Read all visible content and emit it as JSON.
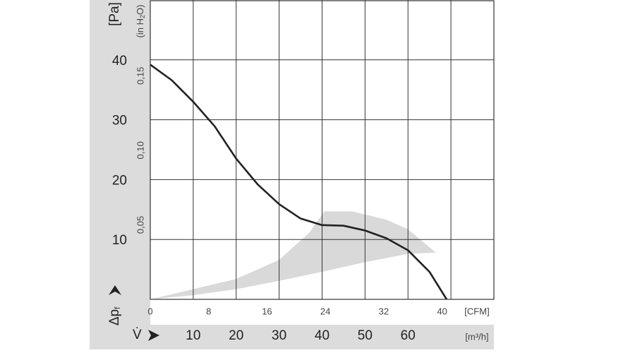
{
  "chart_data": {
    "type": "line",
    "x_label": "[m³/h]",
    "x2_label": "[CFM]",
    "x_symbol": "V̇",
    "y_label": "[Pa]",
    "y_symbol": {
      "main": "Δp",
      "subscript": "f"
    },
    "y2_label": {
      "before": "(in H",
      "subscript": "2",
      "after": "O)"
    },
    "xlim": [
      0,
      80
    ],
    "xticks": [
      10,
      20,
      30,
      40,
      50,
      60
    ],
    "x_gridlines": [
      10,
      20,
      30,
      40,
      50,
      60,
      70
    ],
    "x2lim": [
      0,
      47.1
    ],
    "x2ticks": [
      0,
      8,
      16,
      24,
      32,
      40
    ],
    "ylim": [
      0,
      50
    ],
    "yticks": [
      10,
      20,
      30,
      40
    ],
    "y2lim": [
      0,
      0.2008
    ],
    "y2ticks": [
      {
        "value": 0.05,
        "label": "0,05"
      },
      {
        "value": 0.1,
        "label": "0,10"
      },
      {
        "value": 0.15,
        "label": "0,15"
      }
    ],
    "grid": true,
    "shaded_region": {
      "color": "#d9d9d9",
      "x": [
        0,
        20,
        30,
        37,
        40.5,
        47,
        55,
        60,
        66.5,
        60,
        50,
        40,
        30,
        20,
        10,
        0
      ],
      "y": [
        0,
        3.4,
        6.6,
        11.1,
        14.7,
        14.7,
        13.3,
        11.7,
        7.8,
        7.6,
        6.2,
        4.6,
        3.1,
        1.7,
        0.7,
        0
      ]
    },
    "series": [
      {
        "color": "#222222",
        "x": [
          0,
          5,
          10,
          15,
          20,
          25,
          30,
          35,
          40,
          45,
          50,
          55,
          60,
          65,
          69
        ],
        "values": [
          39.2,
          36.6,
          33,
          28.9,
          23.5,
          19.2,
          15.9,
          13.5,
          12.4,
          12.3,
          11.5,
          10.2,
          8.2,
          4.6,
          0
        ]
      }
    ]
  }
}
